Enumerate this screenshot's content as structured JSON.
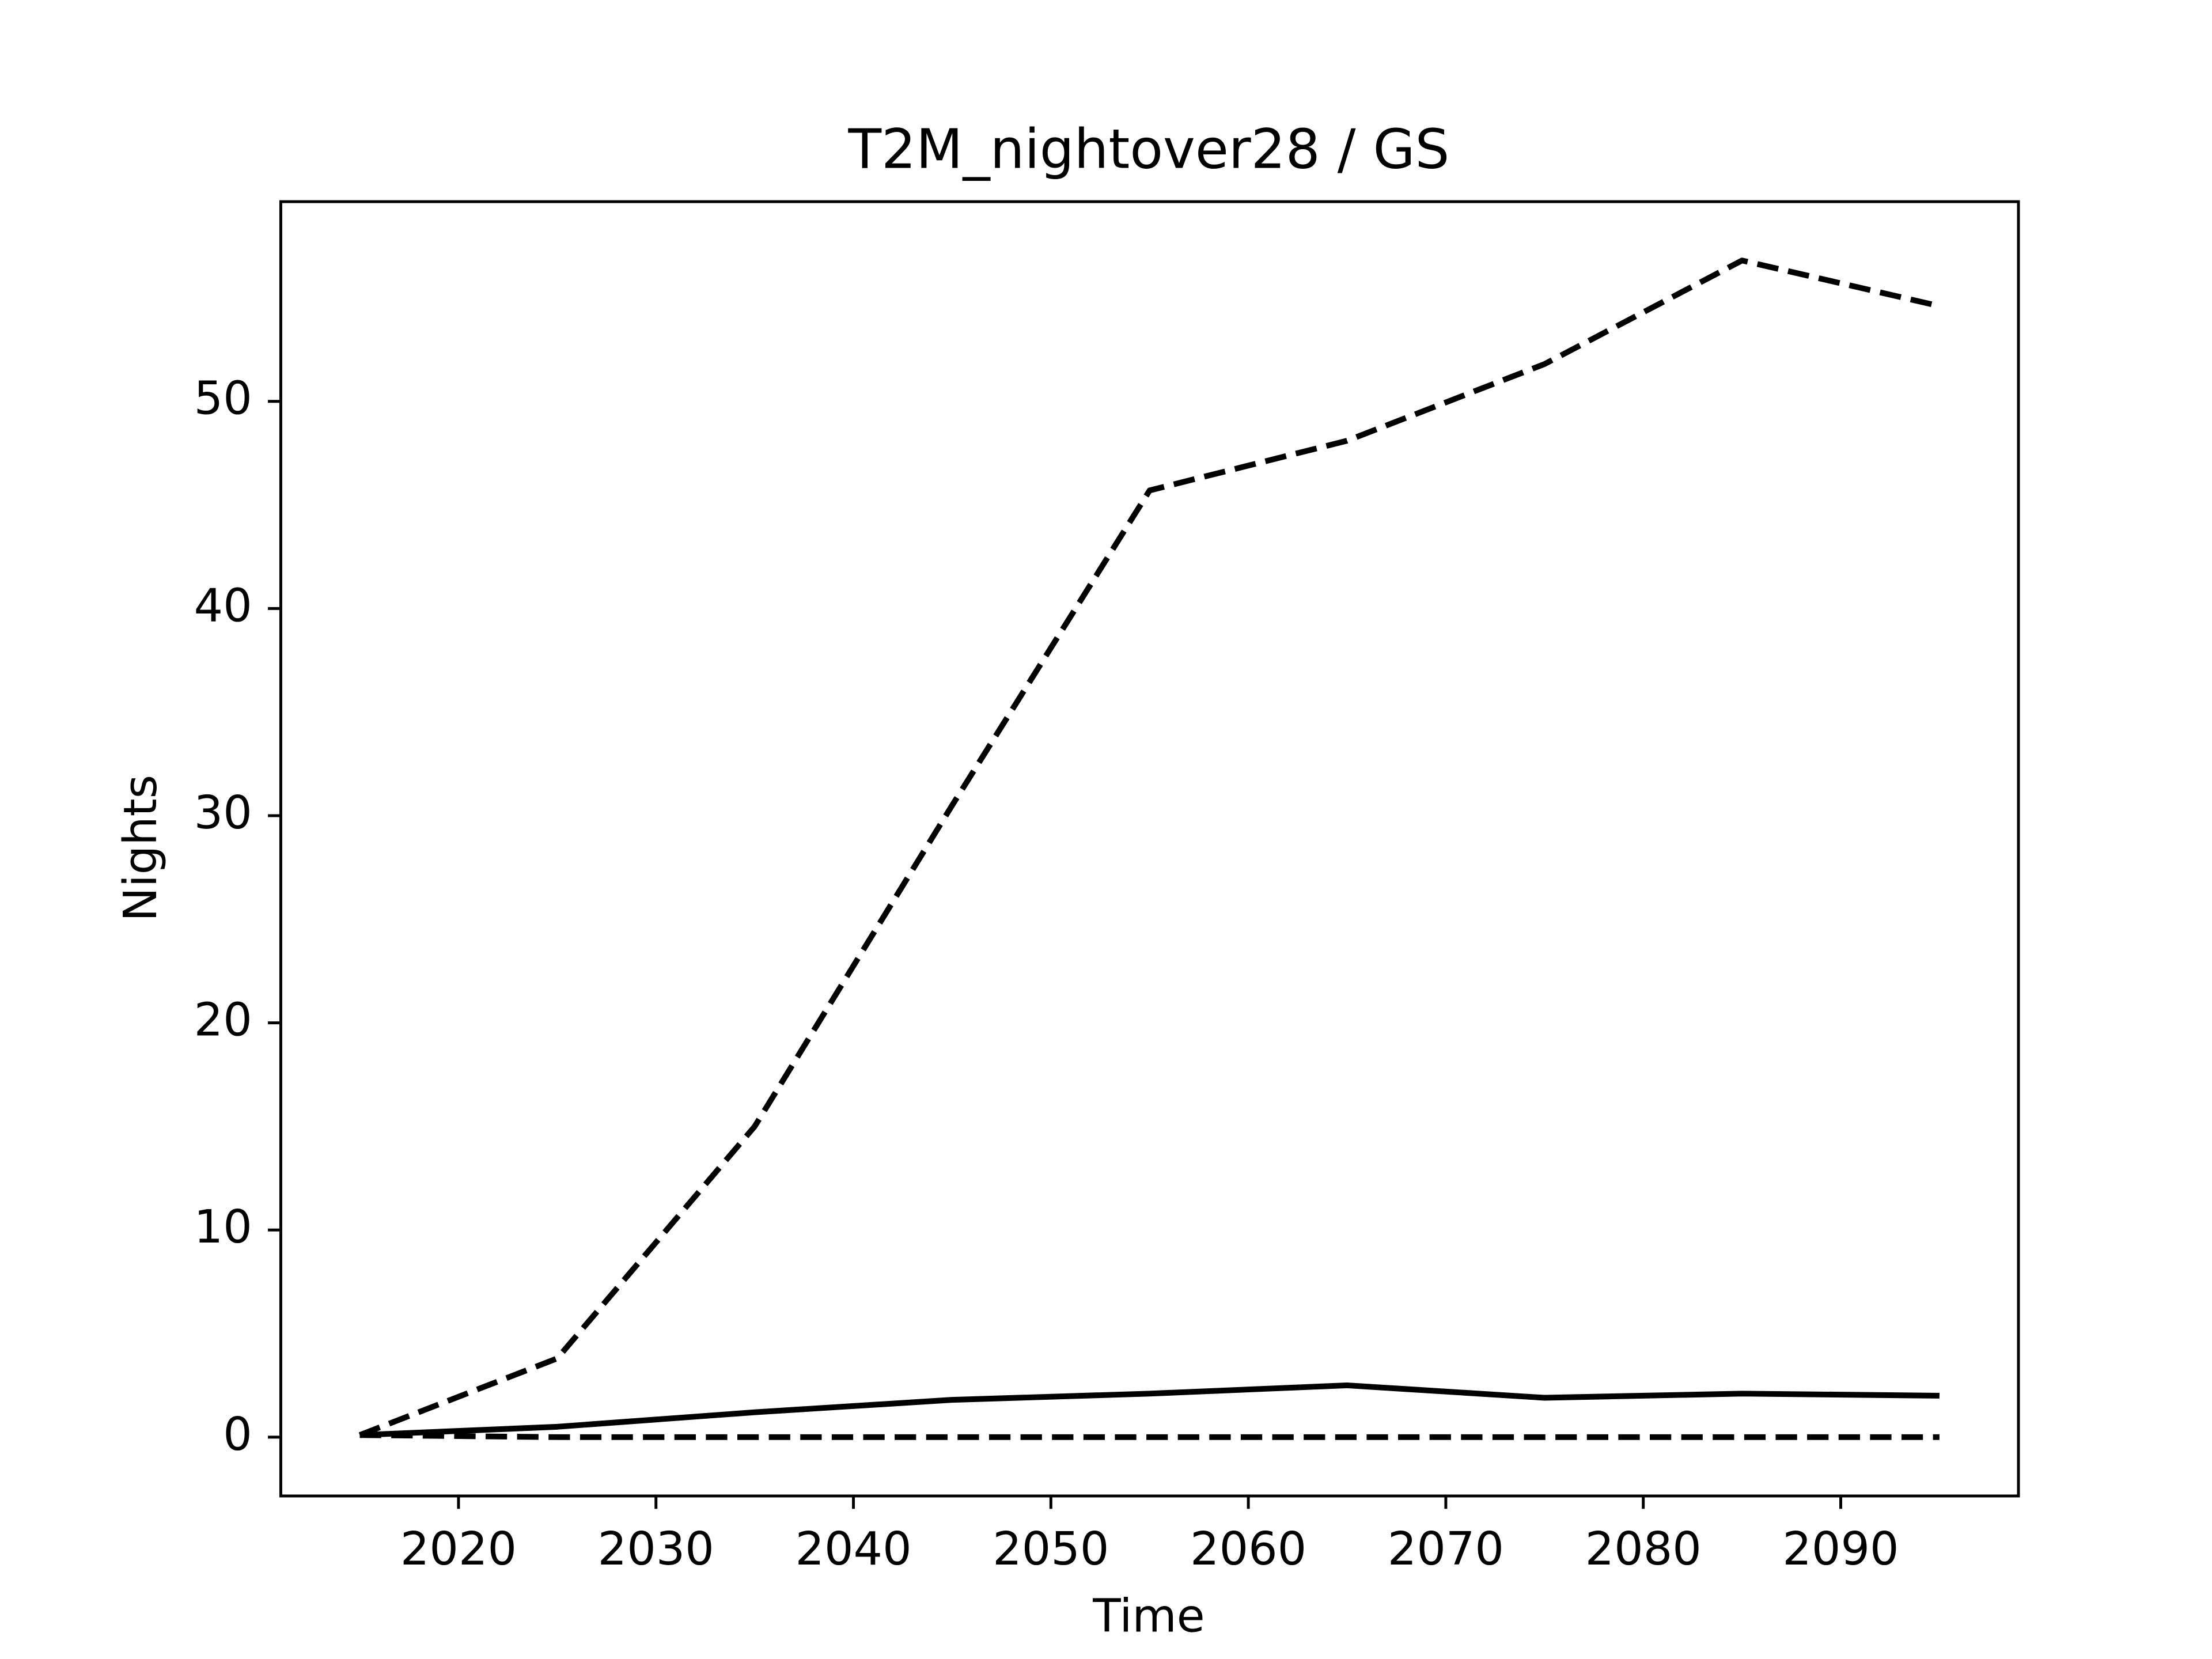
{
  "chart_data": {
    "type": "line",
    "title": "T2M_nightover28 / GS",
    "x_label": "Time",
    "y_label": "Nights",
    "x": [
      2015,
      2025,
      2035,
      2045,
      2055,
      2065,
      2075,
      2085,
      2095
    ],
    "series": [
      {
        "color": "#000000",
        "style": "dashed",
        "values": [
          0.1,
          3.8,
          15,
          30.5,
          45.7,
          48.1,
          51.8,
          56.8,
          54.6
        ]
      },
      {
        "color": "#000000",
        "style": "solid",
        "values": [
          0.1,
          0.5,
          1.2,
          1.8,
          2.1,
          2.5,
          1.9,
          2.1,
          2.0
        ]
      },
      {
        "color": "#000000",
        "style": "dashed",
        "values": [
          0.1,
          0,
          0,
          0,
          0,
          0,
          0,
          0,
          0
        ]
      }
    ],
    "xlim": [
      2011,
      2099
    ],
    "xticks": [
      2020,
      2030,
      2040,
      2050,
      2060,
      2070,
      2080,
      2090
    ],
    "ylim": [
      -2.84,
      59.64
    ],
    "yticks": [
      0,
      10,
      20,
      30,
      40,
      50
    ],
    "grid": false
  }
}
